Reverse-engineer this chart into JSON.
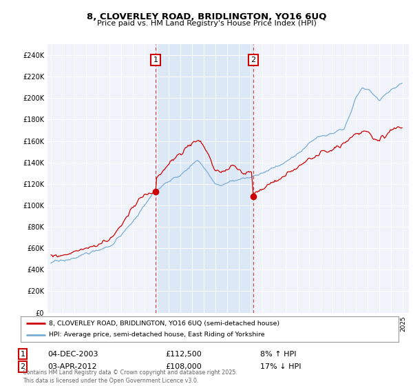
{
  "title_line1": "8, CLOVERLEY ROAD, BRIDLINGTON, YO16 6UQ",
  "title_line2": "Price paid vs. HM Land Registry's House Price Index (HPI)",
  "background_color": "#ffffff",
  "plot_bg_color": "#dce8f5",
  "grid_color": "#ffffff",
  "red_color": "#cc0000",
  "blue_color": "#7aadd4",
  "shade_color": "#dce8f5",
  "sale1_label": "04-DEC-2003",
  "sale1_price": "£112,500",
  "sale1_pct": "8% ↑ HPI",
  "sale2_label": "03-APR-2012",
  "sale2_price": "£108,000",
  "sale2_pct": "17% ↓ HPI",
  "legend1": "8, CLOVERLEY ROAD, BRIDLINGTON, YO16 6UQ (semi-detached house)",
  "legend2": "HPI: Average price, semi-detached house, East Riding of Yorkshire",
  "footer": "Contains HM Land Registry data © Crown copyright and database right 2025.\nThis data is licensed under the Open Government Licence v3.0.",
  "ylim_max": 250000,
  "ylim_min": 0,
  "sale1_year": 2003.917,
  "sale1_value": 112500,
  "sale2_year": 2012.25,
  "sale2_value": 108000
}
